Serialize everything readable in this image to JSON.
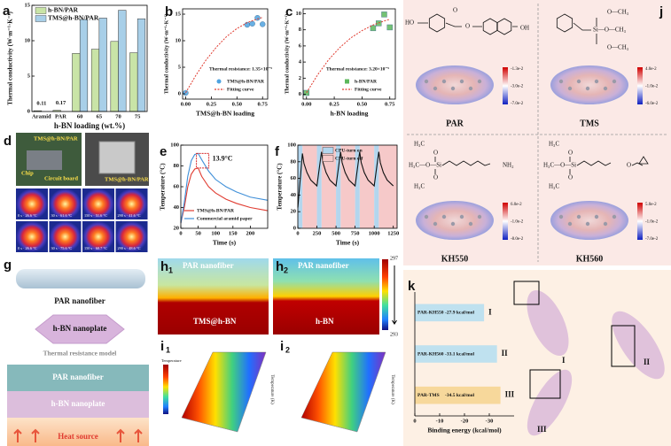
{
  "chart_data": [
    {
      "type": "bar",
      "label": "a",
      "ylabel": "Thermal conductivity (W·m⁻¹·K⁻¹)",
      "xlabel": "h-BN loading (wt.%)",
      "categories": [
        "Aramid",
        "PAR",
        "60",
        "65",
        "70",
        "75"
      ],
      "series": [
        {
          "name": "h-BN/PAR",
          "color": "#c9e4a7",
          "values": [
            0.11,
            0.17,
            8.2,
            8.8,
            9.9,
            8.3
          ],
          "value_labels": [
            "0.11",
            "0.17",
            null,
            null,
            null,
            null
          ]
        },
        {
          "name": "TMS@h-BN/PAR",
          "color": "#a8cfe8",
          "values": [
            null,
            null,
            13.0,
            13.2,
            14.3,
            13.1
          ]
        }
      ],
      "ylim": [
        0,
        15
      ],
      "yticks": [
        0,
        5,
        10,
        15
      ],
      "legend": "upper left"
    },
    {
      "type": "scatter",
      "label": "b",
      "ylabel": "Thermal conductivity (W·m⁻¹·K⁻¹)",
      "xlabel": "TMS@h-BN loading",
      "annotation": "Thermal resistance: 1.35×10⁻⁹",
      "annotation_color": "#d62728",
      "series": [
        {
          "name": "TMS@h-BN/PAR",
          "color": "#4fa3e0",
          "marker": "circle",
          "x": [
            0,
            0.6,
            0.65,
            0.7,
            0.75
          ],
          "y": [
            0.17,
            13.0,
            13.2,
            14.3,
            13.1
          ]
        },
        {
          "name": "Fitting curve",
          "color": "#e03c31",
          "line_style": "dashed",
          "x": [
            0,
            0.1,
            0.2,
            0.3,
            0.4,
            0.5,
            0.6,
            0.7,
            0.75
          ],
          "y": [
            0.2,
            3.5,
            6.4,
            8.8,
            10.8,
            12.3,
            13.4,
            14.1,
            14.4
          ]
        }
      ],
      "xlim": [
        -0.03,
        0.8
      ],
      "xticks": [
        {
          "value": 0,
          "label": "0.00"
        },
        0.25,
        {
          "value": 0.5,
          "label": "0.50"
        },
        0.75
      ],
      "ylim": [
        -1,
        16
      ],
      "yticks": [
        0,
        5,
        10,
        15
      ],
      "legend": "lower right"
    },
    {
      "type": "scatter",
      "label": "c",
      "ylabel": "Thermal conductivity (W·m⁻¹·K⁻¹)",
      "xlabel": "h-BN loading",
      "annotation": "Thermal resistance: 3.20×10⁻⁹",
      "annotation_color": "#d62728",
      "series": [
        {
          "name": "h-BN/PAR",
          "color": "#5cb85c",
          "marker": "square",
          "x": [
            0,
            0.6,
            0.65,
            0.7,
            0.75
          ],
          "y": [
            0.17,
            8.2,
            8.8,
            9.9,
            8.3
          ]
        },
        {
          "name": "Fitting curve",
          "color": "#e03c31",
          "line_style": "dashed",
          "x": [
            0,
            0.1,
            0.2,
            0.3,
            0.4,
            0.5,
            0.6,
            0.7,
            0.75
          ],
          "y": [
            0.2,
            2.4,
            4.3,
            5.8,
            7.0,
            7.9,
            8.6,
            9.1,
            9.3
          ]
        }
      ],
      "xlim": [
        -0.03,
        0.8
      ],
      "xticks": [
        {
          "value": 0,
          "label": "0.00"
        },
        0.25,
        {
          "value": 0.5,
          "label": "0.50"
        },
        0.75
      ],
      "ylim": [
        -0.6,
        10.6
      ],
      "yticks": [
        0,
        2,
        4,
        6,
        8,
        10
      ],
      "legend": "lower right"
    },
    {
      "type": "line",
      "label": "e",
      "ylabel": "Temperature (°C)",
      "xlabel": "Time (s)",
      "x": [
        0,
        10,
        20,
        30,
        40,
        50,
        60,
        80,
        100,
        130,
        160,
        200,
        250
      ],
      "series": [
        {
          "name": "TMS@h-BN/PAR",
          "color": "#e03c31",
          "values": [
            25,
            40,
            60,
            72,
            77,
            78,
            70,
            60,
            54,
            48,
            44,
            40,
            37
          ]
        },
        {
          "name": "Commercial aramid paper",
          "color": "#3f8fd8",
          "values": [
            25,
            45,
            70,
            85,
            91,
            92,
            86,
            75,
            67,
            60,
            55,
            50,
            47
          ]
        }
      ],
      "xlim": [
        0,
        250
      ],
      "xticks": [
        0,
        50,
        100,
        150,
        200
      ],
      "ylim": [
        20,
        100
      ],
      "yticks": [
        20,
        40,
        60,
        80,
        100
      ],
      "annotation": "13.9°C",
      "annotation_color": "#d62728",
      "legend": "lower left"
    },
    {
      "type": "line",
      "label": "f",
      "ylabel": "Temperature (°C)",
      "xlabel": "Time (s)",
      "x": [
        0,
        60,
        80,
        120,
        170,
        250,
        310,
        330,
        370,
        420,
        500,
        560,
        580,
        620,
        670,
        750,
        810,
        830,
        870,
        920,
        1000,
        1060,
        1080,
        1120,
        1170,
        1250
      ],
      "series": [
        {
          "color": "#111111",
          "values": [
            25,
            90,
            78,
            67,
            58,
            51,
            92,
            79,
            67,
            58,
            51,
            92,
            79,
            67,
            58,
            51,
            92,
            79,
            67,
            58,
            51,
            92,
            79,
            67,
            58,
            51
          ]
        }
      ],
      "on_periods": [
        [
          0,
          60
        ],
        [
          250,
          310
        ],
        [
          500,
          560
        ],
        [
          750,
          810
        ],
        [
          1000,
          1060
        ]
      ],
      "bands": [
        {
          "name": "CPU-turn on",
          "color": "#b3d6ee"
        },
        {
          "name": "CPU-turn off",
          "color": "#f6c9c9"
        }
      ],
      "xlim": [
        0,
        1300
      ],
      "xticks": [
        0,
        250,
        500,
        750,
        1000,
        1250
      ],
      "ylim": [
        0,
        100
      ],
      "yticks": [
        0,
        20,
        40,
        60,
        80,
        100
      ],
      "legend": "upper center"
    },
    {
      "type": "barh",
      "label": "k",
      "xlabel": "Binding energy (kcal/mol)",
      "categories": [
        "PAR-KH550",
        "PAR-KH560",
        "PAR-TMS"
      ],
      "values": [
        -27.9,
        -33.1,
        -34.5
      ],
      "value_labels": [
        "-27.9 kcal/mol",
        "-33.1 kcal/mol",
        "-34.5 kcal/mol"
      ],
      "colors": [
        "#bfe1ef",
        "#bfe1ef",
        "#f7d89b"
      ],
      "markers": [
        "I",
        "II",
        "III"
      ],
      "xlim": [
        0,
        -40
      ],
      "xticks": [
        0,
        -10,
        -20,
        -30
      ]
    }
  ],
  "figure": {
    "d": {
      "label": "d",
      "photo": [
        "TMS@h-BN/PAR",
        "Chip",
        "Circuit board",
        "TMS@h-BN/PAR"
      ],
      "thermal": [
        "0 s · 26.6 °C",
        "30 s · 61.6 °C",
        "150 s · 51.6 °C",
        "290 s · 41.6 °C",
        "0 s · 26.6 °C",
        "30 s · 75.6 °C",
        "150 s · 60.7 °C",
        "290 s · 48.6 °C"
      ]
    },
    "g": {
      "label": "g",
      "texts": [
        "PAR nanofiber",
        "h-BN nanoplate",
        "Thermal resistance model",
        "PAR nanofiber",
        "h-BN nanoplate",
        "Heat source"
      ]
    },
    "h": [
      {
        "label": "h",
        "sub": "1",
        "top": "PAR nanofiber",
        "bottom": "TMS@h-BN"
      },
      {
        "label": "h",
        "sub": "2",
        "top": "PAR nanofiber",
        "bottom": "h-BN"
      }
    ],
    "h_scale": [
      "297",
      "293"
    ],
    "i": [
      {
        "label": "i",
        "sub": "1"
      },
      {
        "label": "i",
        "sub": "2"
      }
    ],
    "i_texts": [
      "Temperature",
      "Temperature (K)"
    ],
    "j": {
      "label": "j",
      "molecules": [
        {
          "name": "PAR",
          "atoms": [
            "HO",
            "O",
            "O",
            "OH"
          ],
          "scale": [
            "-1.3e-2",
            "-3.0e-2",
            "-7.0e-2"
          ]
        },
        {
          "name": "TMS",
          "atoms": [
            "O—CH₃",
            "Si—O—CH₃",
            "O—CH₃"
          ],
          "scale": [
            "4.0e-2",
            "-1.0e-2",
            "-6.0e-2"
          ]
        },
        {
          "name": "KH550",
          "atoms": [
            "H₃C",
            "O",
            "H₃C—O—Si",
            "O",
            "H₃C",
            "NH₂"
          ],
          "scale": [
            "6.0e-2",
            "-1.0e-2",
            "-8.0e-2"
          ]
        },
        {
          "name": "KH560",
          "atoms": [
            "H₃C",
            "O",
            "H₃C—O—Si",
            "O",
            "H₃C",
            "O"
          ],
          "scale": [
            "5.0e-2",
            "-1.0e-2",
            "-7.0e-2"
          ]
        }
      ]
    }
  }
}
